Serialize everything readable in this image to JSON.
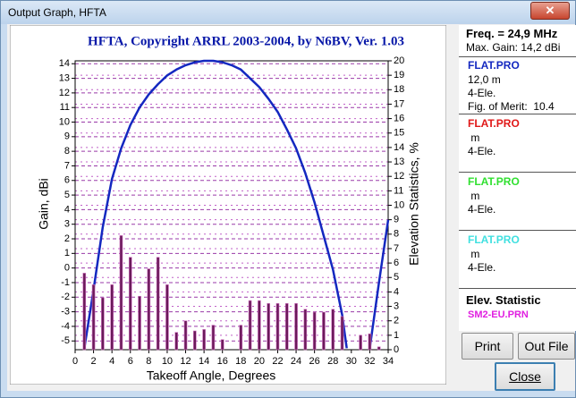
{
  "window": {
    "title": "Output Graph, HFTA"
  },
  "chart_data": {
    "type": "combo",
    "title": "HFTA, Copyright ARRL 2003-2004, by N6BV, Ver. 1.03",
    "x_label": "Takeoff Angle, Degrees",
    "y_label": "Gain, dBi",
    "y2_label": "Elevation Statistics, %",
    "xlim": [
      0,
      34
    ],
    "xticks": [
      0,
      2,
      4,
      6,
      8,
      10,
      12,
      14,
      16,
      18,
      20,
      22,
      24,
      26,
      28,
      30,
      32,
      34
    ],
    "ylim": [
      -5.6,
      14.2
    ],
    "yticks": [
      -5,
      -4,
      -3,
      -2,
      -1,
      0,
      1,
      2,
      3,
      4,
      5,
      6,
      7,
      8,
      9,
      10,
      11,
      12,
      13,
      14
    ],
    "y2lim": [
      0,
      20
    ],
    "y2ticks": [
      0,
      1,
      2,
      3,
      4,
      5,
      6,
      7,
      8,
      9,
      10,
      11,
      12,
      13,
      14,
      15,
      16,
      17,
      18,
      19,
      20
    ],
    "grid": true,
    "series": [
      {
        "type": "line",
        "color": "#1428c0",
        "x": [
          1,
          2,
          3,
          4,
          5,
          6,
          7,
          8,
          9,
          10,
          11,
          12,
          13,
          14,
          15,
          16,
          17,
          18,
          19,
          20,
          21,
          22,
          23,
          24,
          25,
          26,
          27,
          28,
          29,
          29.5,
          30,
          31,
          32,
          33,
          34
        ],
        "values": [
          -5.5,
          -1.5,
          2.8,
          6.1,
          8.2,
          9.8,
          11.0,
          11.9,
          12.6,
          13.2,
          13.6,
          13.9,
          14.1,
          14.2,
          14.2,
          14.1,
          13.9,
          13.6,
          13.0,
          12.4,
          11.6,
          10.7,
          9.5,
          8.2,
          6.5,
          4.5,
          2.2,
          -0.1,
          -3.2,
          -5.5,
          null,
          null,
          -5.5,
          -1.0,
          3.3
        ]
      },
      {
        "type": "bar",
        "axis": "y2",
        "color": "#6a1a5a",
        "x": [
          1,
          2,
          3,
          4,
          5,
          6,
          7,
          8,
          9,
          10,
          11,
          12,
          13,
          14,
          15,
          16,
          17,
          18,
          19,
          20,
          21,
          22,
          23,
          24,
          25,
          26,
          27,
          28,
          29,
          30,
          31,
          32,
          33
        ],
        "values": [
          5.3,
          4.5,
          3.6,
          4.5,
          7.9,
          6.4,
          3.7,
          5.6,
          6.4,
          4.5,
          1.2,
          2.0,
          1.3,
          1.4,
          1.7,
          0.7,
          0,
          1.7,
          3.4,
          3.4,
          3.2,
          3.2,
          3.2,
          3.2,
          2.8,
          2.6,
          2.6,
          2.8,
          2.3,
          0,
          1.0,
          1.1,
          0.2
        ]
      }
    ]
  },
  "panel": {
    "freq": "Freq. = 24,9 MHz",
    "max_gain": "Max. Gain: 14,2 dBi",
    "files": [
      {
        "name": "FLAT.PRO",
        "color": "#1428c0",
        "lines": [
          "12,0 m",
          "4-Ele.",
          "Fig. of Merit:  10.4"
        ]
      },
      {
        "name": "FLAT.PRO",
        "color": "#e01818",
        "lines": [
          " m",
          "4-Ele."
        ]
      },
      {
        "name": "FLAT.PRO",
        "color": "#30e030",
        "lines": [
          " m",
          "4-Ele."
        ]
      },
      {
        "name": "FLAT.PRO",
        "color": "#40e0e0",
        "lines": [
          " m",
          "4-Ele."
        ]
      }
    ],
    "elev_title": "Elev. Statistic",
    "elev_file": "SM2-EU.PRN",
    "elev_color": "#e020e0"
  },
  "buttons": {
    "print": "Print",
    "out_file": "Out File",
    "close": "Close"
  }
}
